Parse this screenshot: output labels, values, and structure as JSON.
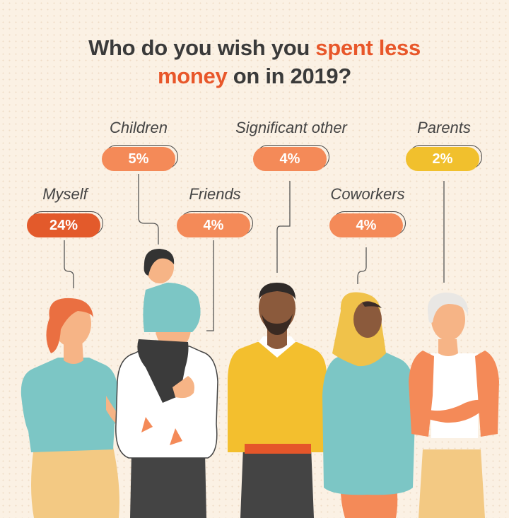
{
  "title": {
    "part1": "Who do you wish you ",
    "accent1": "spent less",
    "accent2": "money",
    "part2": " on in 2019?"
  },
  "colors": {
    "accent": "#e8572a",
    "pill_dark": "#e35a2b",
    "pill_mid": "#f48a58",
    "pill_yellow": "#f1c02d",
    "text": "#3a3a3a"
  },
  "chart_data": {
    "type": "bar",
    "categories": [
      "Myself",
      "Children",
      "Friends",
      "Significant other",
      "Coworkers",
      "Parents"
    ],
    "values": [
      24,
      5,
      4,
      4,
      4,
      2
    ],
    "value_labels": [
      "24%",
      "5%",
      "4%",
      "4%",
      "4%",
      "2%"
    ],
    "title": "Who do you wish you spent less money on in 2019?",
    "unit": "%"
  }
}
